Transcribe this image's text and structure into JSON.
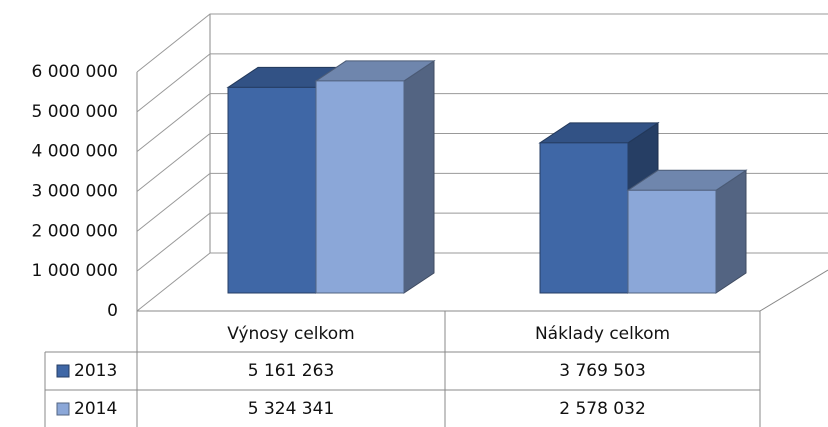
{
  "chart_data": {
    "type": "bar3d",
    "categories": [
      "Výnosy celkom",
      "Náklady celkom"
    ],
    "series": [
      {
        "name": "2013",
        "color": "#3f67a6",
        "values": [
          5161263,
          3769503
        ],
        "value_labels": [
          "5 161 263",
          "3 769 503"
        ]
      },
      {
        "name": "2014",
        "color": "#8ba7d8",
        "values": [
          5324341,
          2578032
        ],
        "value_labels": [
          "5 324 341",
          "2 578 032"
        ]
      }
    ],
    "ylim": [
      0,
      6000000
    ],
    "yticks": [
      {
        "value": 0,
        "label": "0"
      },
      {
        "value": 1000000,
        "label": "1 000 000"
      },
      {
        "value": 2000000,
        "label": "2 000 000"
      },
      {
        "value": 3000000,
        "label": "3 000 000"
      },
      {
        "value": 4000000,
        "label": "4 000 000"
      },
      {
        "value": 5000000,
        "label": "5 000 000"
      },
      {
        "value": 6000000,
        "label": "6 000 000"
      }
    ],
    "grid": true
  }
}
